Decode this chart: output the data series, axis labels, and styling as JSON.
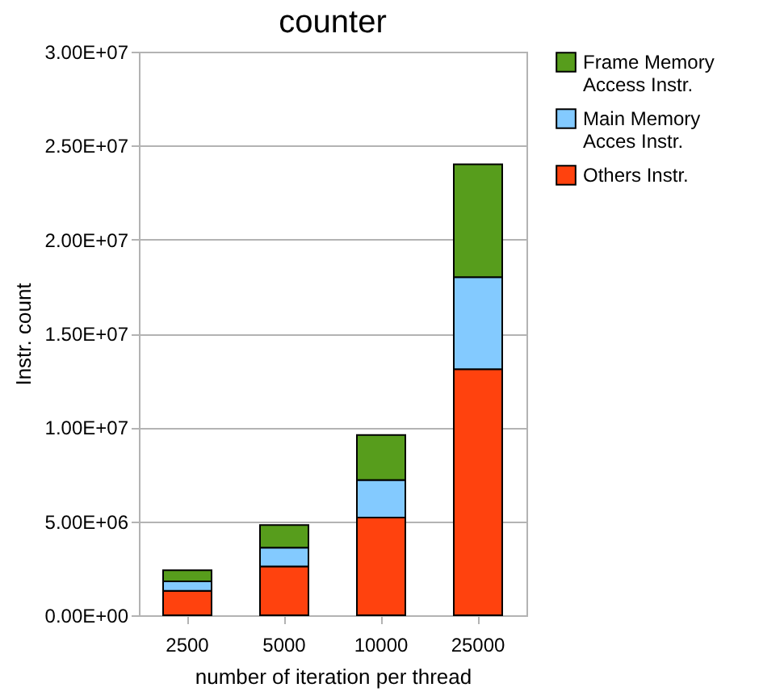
{
  "chart_data": {
    "type": "bar",
    "title": "counter",
    "xlabel": "number of iteration per thread",
    "ylabel": "Instr. count",
    "categories": [
      "2500",
      "5000",
      "10000",
      "25000"
    ],
    "series": [
      {
        "name": "Others Instr.",
        "color": "#ff420e",
        "values": [
          1300000,
          2600000,
          5200000,
          13100000
        ]
      },
      {
        "name": "Main Memory Acces Instr.",
        "color": "#83caff",
        "values": [
          500000,
          1000000,
          2000000,
          4900000
        ]
      },
      {
        "name": "Frame Memory Access Instr.",
        "color": "#579d1c",
        "values": [
          600000,
          1200000,
          2400000,
          6000000
        ]
      }
    ],
    "stacked": true,
    "ylim": [
      0,
      30000000
    ],
    "yticks": [
      {
        "value": 0,
        "label": "0.00E+00"
      },
      {
        "value": 5000000,
        "label": "5.00E+06"
      },
      {
        "value": 10000000,
        "label": "1.00E+07"
      },
      {
        "value": 15000000,
        "label": "1.50E+07"
      },
      {
        "value": 20000000,
        "label": "2.00E+07"
      },
      {
        "value": 25000000,
        "label": "2.50E+07"
      },
      {
        "value": 30000000,
        "label": "3.00E+07"
      }
    ],
    "grid": "y",
    "legend": "right"
  }
}
